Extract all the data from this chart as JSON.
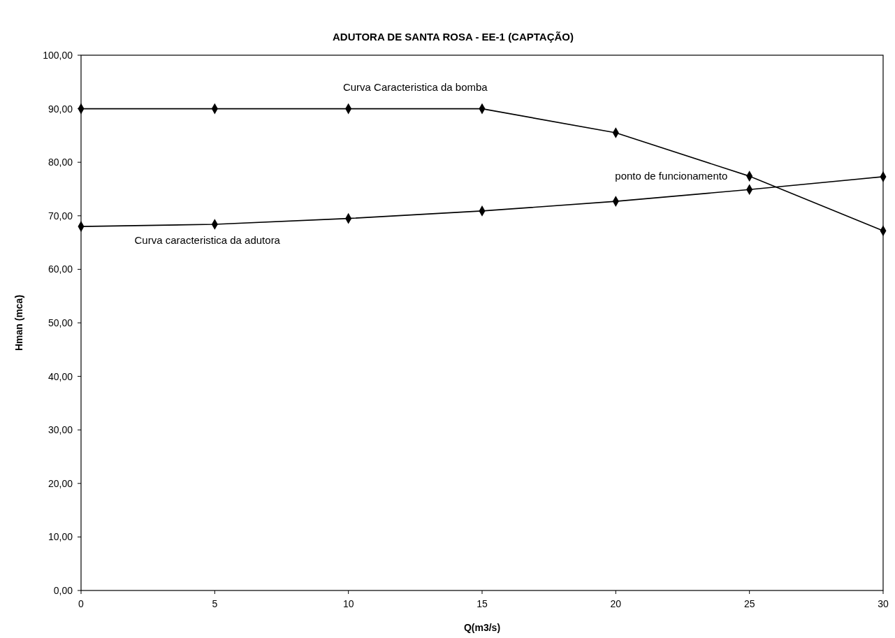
{
  "chart_data": {
    "type": "line",
    "title": "ADUTORA DE SANTA ROSA - EE-1  (CAPTAÇÃO)",
    "xlabel": "Q(m3/s)",
    "ylabel": "Hman (mca)",
    "x": [
      0,
      5,
      10,
      15,
      20,
      25,
      30
    ],
    "series": [
      {
        "name": "Curva Caracteristica da bomba",
        "color": "#000000",
        "values": [
          90,
          90,
          90,
          90,
          85.5,
          77.4,
          67.2
        ]
      },
      {
        "name": "Curva caracteristica da adutora",
        "color": "#000000",
        "values": [
          68,
          68.4,
          69.5,
          70.9,
          72.7,
          74.9,
          77.3
        ]
      }
    ],
    "annotations": [
      "ponto de funcionamento"
    ],
    "xlim": [
      0,
      30
    ],
    "xticks": [
      0,
      5,
      10,
      15,
      20,
      25,
      30
    ],
    "ylim": [
      0,
      100
    ],
    "yticks": [
      {
        "value": 0,
        "label": "0,00"
      },
      {
        "value": 10,
        "label": "10,00"
      },
      {
        "value": 20,
        "label": "20,00"
      },
      {
        "value": 30,
        "label": "30,00"
      },
      {
        "value": 40,
        "label": "40,00"
      },
      {
        "value": 50,
        "label": "50,00"
      },
      {
        "value": 60,
        "label": "60,00"
      },
      {
        "value": 70,
        "label": "70,00"
      },
      {
        "value": 80,
        "label": "80,00"
      },
      {
        "value": 90,
        "label": "90,00"
      },
      {
        "value": 100,
        "label": "100,00"
      }
    ],
    "marker": "diamond",
    "line_style": "solid"
  }
}
